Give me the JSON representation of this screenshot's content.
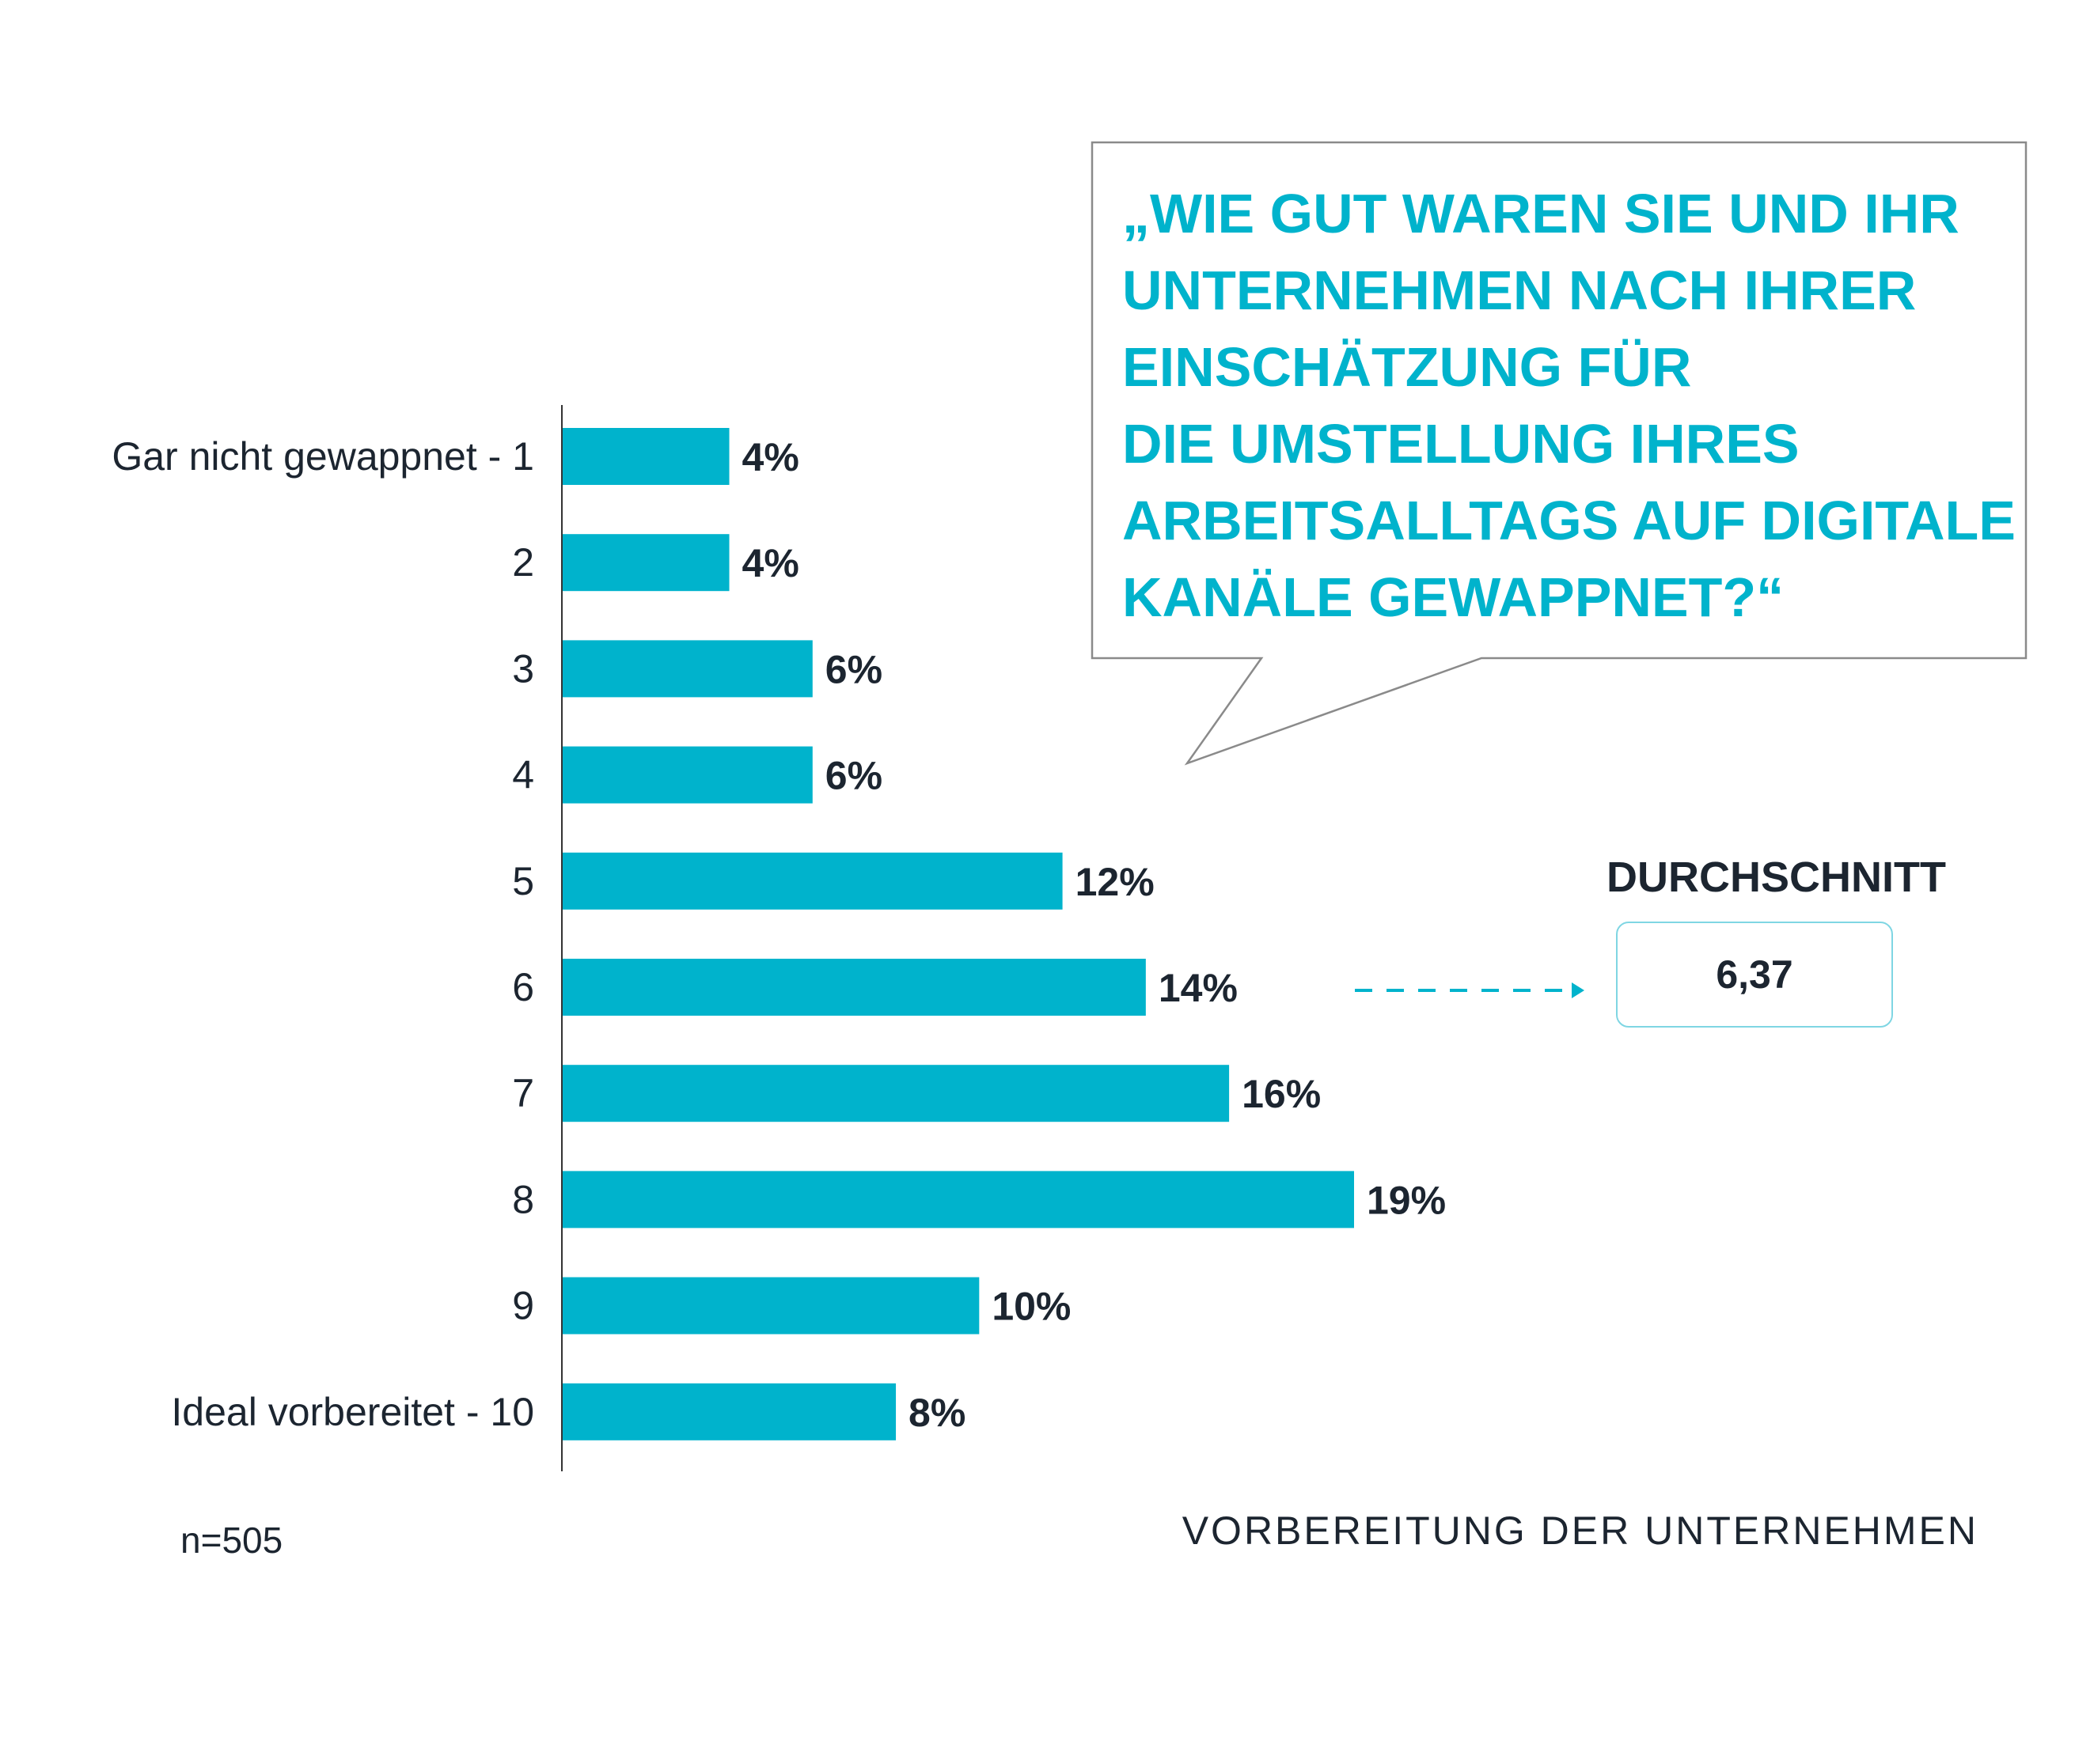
{
  "question": {
    "lines": [
      "„Wie gut waren Sie und Ihr",
      "Unternehmen nach Ihrer",
      "Einschätzung für",
      "die Umstellung Ihres",
      "Arbeitsalltags auf digitale",
      "Kanäle gewappnet?“"
    ]
  },
  "average": {
    "title": "DURCHSCHNITT",
    "value": "6,37"
  },
  "sample": "n=505",
  "footer_title": "VORBEREITUNG DER UNTERNEHMEN",
  "colors": {
    "bar": "#00b3cc",
    "text_dark": "#1c2530",
    "axis": "#333333"
  },
  "chart_data": {
    "type": "bar",
    "orientation": "horizontal",
    "categories": [
      "Gar nicht gewappnet - 1",
      "2",
      "3",
      "4",
      "5",
      "6",
      "7",
      "8",
      "9",
      "Ideal vorbereitet - 10"
    ],
    "values": [
      4,
      4,
      6,
      6,
      12,
      14,
      16,
      19,
      10,
      8
    ],
    "value_labels": [
      "4%",
      "4%",
      "6%",
      "6%",
      "12%",
      "14%",
      "16%",
      "19%",
      "10%",
      "8%"
    ],
    "unit": "%",
    "xlim": [
      0,
      19
    ],
    "grid": false
  }
}
